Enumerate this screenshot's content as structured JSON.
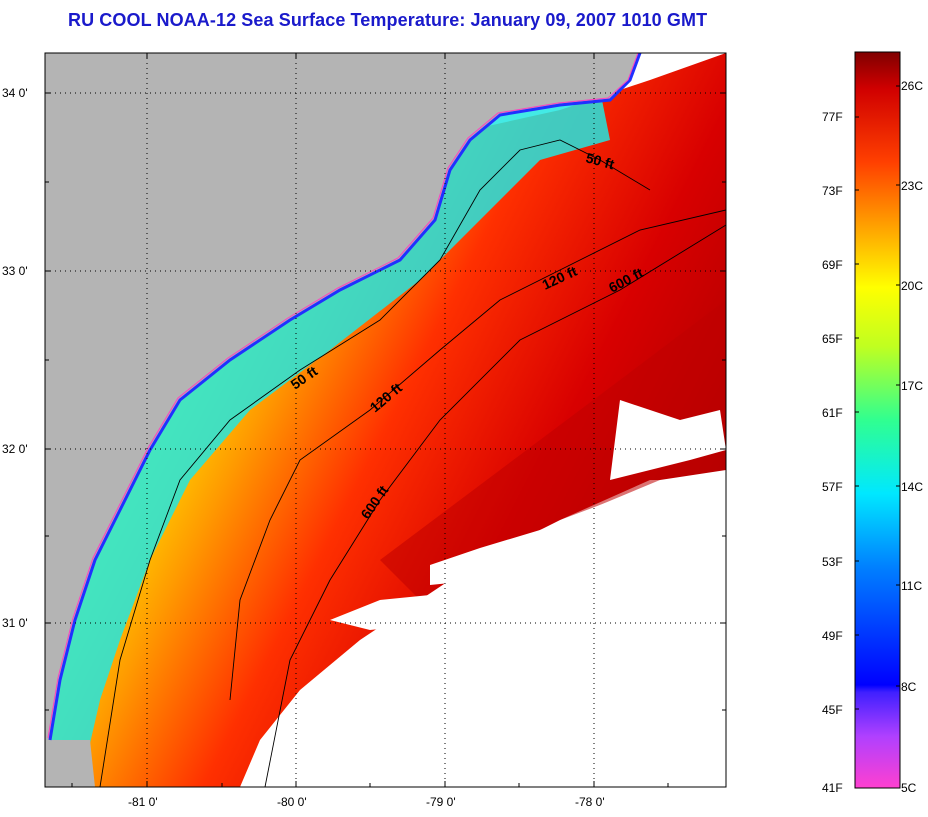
{
  "title": "RU COOL  NOAA-12  Sea Surface Temperature:  January 09, 2007 1010 GMT",
  "map": {
    "lat_labels": [
      "34 0'",
      "33 0'",
      "32 0'",
      "31 0'"
    ],
    "lon_labels": [
      "-81 0'",
      "-80 0'",
      "-79 0'",
      "-78 0'"
    ],
    "depth_contours": [
      {
        "label": "50 ft",
        "id": "north"
      },
      {
        "label": "120 ft",
        "id": "north"
      },
      {
        "label": "600 ft",
        "id": "north"
      },
      {
        "label": "50 ft",
        "id": "south"
      },
      {
        "label": "120 ft",
        "id": "south"
      },
      {
        "label": "600 ft",
        "id": "south"
      }
    ]
  },
  "colorbar": {
    "fahrenheit_labels": [
      "77F",
      "73F",
      "69F",
      "65F",
      "61F",
      "57F",
      "53F",
      "49F",
      "45F",
      "41F"
    ],
    "celsius_labels": [
      "26C",
      "23C",
      "20C",
      "17C",
      "14C",
      "11C",
      "8C",
      "5C"
    ]
  }
}
